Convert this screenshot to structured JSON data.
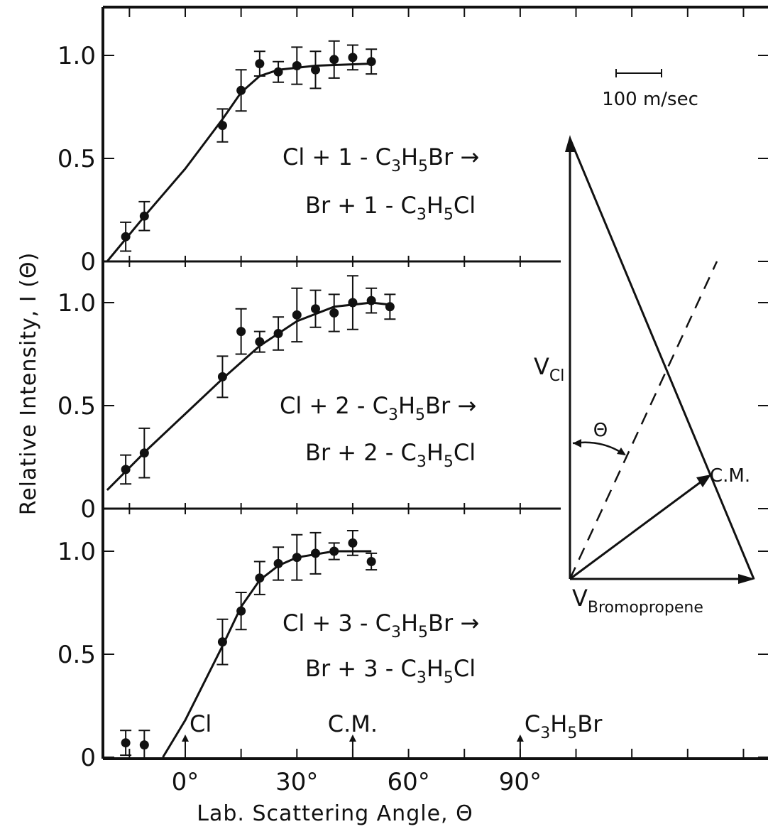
{
  "chart_data": {
    "type": "scatter",
    "xlabel": "Lab. Scattering Angle, Θ",
    "ylabel": "Relative Intensity, I (Θ)",
    "x_tick_labels": [
      "0°",
      "30°",
      "60°",
      "90°"
    ],
    "x_ticks": [
      0,
      30,
      60,
      90
    ],
    "xlim": [
      -21,
      150
    ],
    "ylim": [
      0,
      1.2
    ],
    "y_tick_labels": [
      "0",
      "0.5",
      "1.0"
    ],
    "y_ticks": [
      0,
      0.5,
      1.0
    ],
    "panels": [
      {
        "reaction_line1": [
          {
            "t": "Cl + 1 - C",
            "sub": false
          },
          {
            "t": "3",
            "sub": true
          },
          {
            "t": "H",
            "sub": false
          },
          {
            "t": "5",
            "sub": true
          },
          {
            "t": "Br →",
            "sub": false
          }
        ],
        "reaction_line2": [
          {
            "t": "Br + 1 - C",
            "sub": false
          },
          {
            "t": "3",
            "sub": true
          },
          {
            "t": "H",
            "sub": false
          },
          {
            "t": "5",
            "sub": true
          },
          {
            "t": "Cl",
            "sub": false
          }
        ],
        "points": [
          {
            "x": -16,
            "y": 0.12,
            "err": 0.07
          },
          {
            "x": -11,
            "y": 0.22,
            "err": 0.07
          },
          {
            "x": 10,
            "y": 0.66,
            "err": 0.08
          },
          {
            "x": 15,
            "y": 0.83,
            "err": 0.1
          },
          {
            "x": 20,
            "y": 0.96,
            "err": 0.06
          },
          {
            "x": 25,
            "y": 0.92,
            "err": 0.05
          },
          {
            "x": 30,
            "y": 0.95,
            "err": 0.09
          },
          {
            "x": 35,
            "y": 0.93,
            "err": 0.09
          },
          {
            "x": 40,
            "y": 0.98,
            "err": 0.09
          },
          {
            "x": 45,
            "y": 0.99,
            "err": 0.06
          },
          {
            "x": 50,
            "y": 0.97,
            "err": 0.06
          }
        ],
        "fit_curve": [
          {
            "x": -21,
            "y": 0.0
          },
          {
            "x": -10,
            "y": 0.24
          },
          {
            "x": 0,
            "y": 0.45
          },
          {
            "x": 10,
            "y": 0.69
          },
          {
            "x": 15,
            "y": 0.82
          },
          {
            "x": 20,
            "y": 0.9
          },
          {
            "x": 25,
            "y": 0.93
          },
          {
            "x": 35,
            "y": 0.95
          },
          {
            "x": 50,
            "y": 0.96
          }
        ]
      },
      {
        "reaction_line1": [
          {
            "t": "Cl + 2 - C",
            "sub": false
          },
          {
            "t": "3",
            "sub": true
          },
          {
            "t": "H",
            "sub": false
          },
          {
            "t": "5",
            "sub": true
          },
          {
            "t": "Br →",
            "sub": false
          }
        ],
        "reaction_line2": [
          {
            "t": "Br + 2 - C",
            "sub": false
          },
          {
            "t": "3",
            "sub": true
          },
          {
            "t": "H",
            "sub": false
          },
          {
            "t": "5",
            "sub": true
          },
          {
            "t": "Cl",
            "sub": false
          }
        ],
        "points": [
          {
            "x": -16,
            "y": 0.19,
            "err": 0.07
          },
          {
            "x": -11,
            "y": 0.27,
            "err": 0.12
          },
          {
            "x": 10,
            "y": 0.64,
            "err": 0.1
          },
          {
            "x": 15,
            "y": 0.86,
            "err": 0.11
          },
          {
            "x": 20,
            "y": 0.81,
            "err": 0.05
          },
          {
            "x": 25,
            "y": 0.85,
            "err": 0.08
          },
          {
            "x": 30,
            "y": 0.94,
            "err": 0.13
          },
          {
            "x": 35,
            "y": 0.97,
            "err": 0.09
          },
          {
            "x": 40,
            "y": 0.95,
            "err": 0.09
          },
          {
            "x": 45,
            "y": 1.0,
            "err": 0.13
          },
          {
            "x": 50,
            "y": 1.01,
            "err": 0.06
          },
          {
            "x": 55,
            "y": 0.98,
            "err": 0.06
          }
        ],
        "fit_curve": [
          {
            "x": -21,
            "y": 0.09
          },
          {
            "x": -10,
            "y": 0.29
          },
          {
            "x": 0,
            "y": 0.46
          },
          {
            "x": 10,
            "y": 0.63
          },
          {
            "x": 20,
            "y": 0.79
          },
          {
            "x": 30,
            "y": 0.91
          },
          {
            "x": 40,
            "y": 0.98
          },
          {
            "x": 50,
            "y": 1.0
          },
          {
            "x": 55,
            "y": 0.99
          }
        ]
      },
      {
        "reaction_line1": [
          {
            "t": "Cl + 3 - C",
            "sub": false
          },
          {
            "t": "3",
            "sub": true
          },
          {
            "t": "H",
            "sub": false
          },
          {
            "t": "5",
            "sub": true
          },
          {
            "t": "Br →",
            "sub": false
          }
        ],
        "reaction_line2": [
          {
            "t": "Br + 3 - C",
            "sub": false
          },
          {
            "t": "3",
            "sub": true
          },
          {
            "t": "H",
            "sub": false
          },
          {
            "t": "5",
            "sub": true
          },
          {
            "t": "Cl",
            "sub": false
          }
        ],
        "points": [
          {
            "x": -16,
            "y": 0.07,
            "err": 0.06
          },
          {
            "x": -11,
            "y": 0.06,
            "err": 0.07
          },
          {
            "x": 10,
            "y": 0.56,
            "err": 0.11
          },
          {
            "x": 15,
            "y": 0.71,
            "err": 0.09
          },
          {
            "x": 20,
            "y": 0.87,
            "err": 0.08
          },
          {
            "x": 25,
            "y": 0.94,
            "err": 0.08
          },
          {
            "x": 30,
            "y": 0.97,
            "err": 0.11
          },
          {
            "x": 35,
            "y": 0.99,
            "err": 0.1
          },
          {
            "x": 40,
            "y": 1.0,
            "err": 0.04
          },
          {
            "x": 45,
            "y": 1.04,
            "err": 0.06
          },
          {
            "x": 50,
            "y": 0.95,
            "err": 0.04
          }
        ],
        "fit_curve": [
          {
            "x": -6,
            "y": 0.0
          },
          {
            "x": 0,
            "y": 0.18
          },
          {
            "x": 10,
            "y": 0.54
          },
          {
            "x": 15,
            "y": 0.73
          },
          {
            "x": 20,
            "y": 0.86
          },
          {
            "x": 25,
            "y": 0.93
          },
          {
            "x": 30,
            "y": 0.97
          },
          {
            "x": 40,
            "y": 1.0
          },
          {
            "x": 50,
            "y": 1.0
          }
        ]
      }
    ],
    "angle_markers": [
      {
        "x": 0,
        "parts": [
          {
            "t": "Cl",
            "sub": false
          }
        ]
      },
      {
        "x": 45,
        "parts": [
          {
            "t": "C.M.",
            "sub": false
          }
        ]
      },
      {
        "x": 90,
        "parts": [
          {
            "t": "C",
            "sub": false
          },
          {
            "t": "3",
            "sub": true
          },
          {
            "t": "H",
            "sub": false
          },
          {
            "t": "5",
            "sub": true
          },
          {
            "t": "Br",
            "sub": false
          }
        ]
      }
    ],
    "velocity_diagram": {
      "scale_bar_label": "100 m/sec",
      "v_cl_label": "V",
      "v_cl_sub": "Cl",
      "v_bromopropene_label": "V",
      "v_bromopropene_sub": "Bromopropene",
      "cm_label": "C.M.",
      "theta_label": "Θ"
    }
  }
}
